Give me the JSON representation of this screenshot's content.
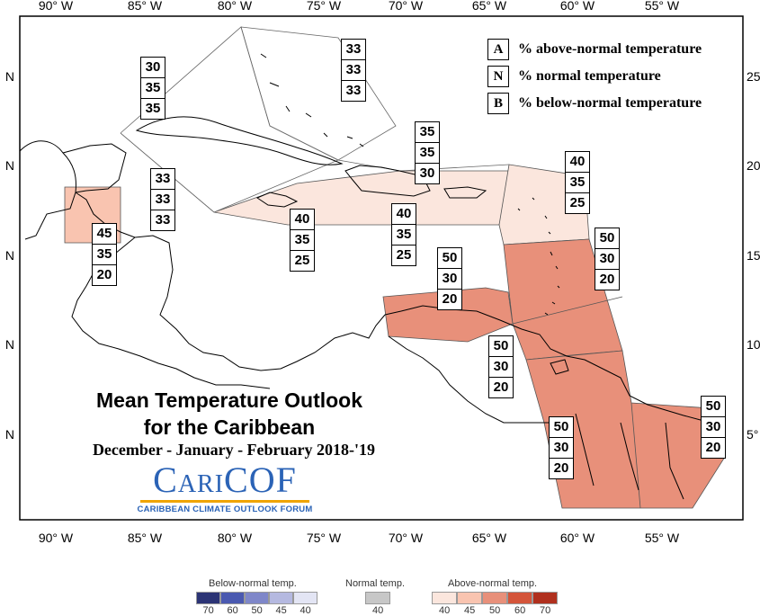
{
  "map": {
    "title_line1": "Mean Temperature Outlook",
    "title_line2": "for the Caribbean",
    "period": "December - January - February 2018-'19",
    "logo_text": "CariCOF",
    "logo_subtitle": "CARIBBEAN CLIMATE OUTLOOK FORUM"
  },
  "lon_ticks": [
    "90° W",
    "85° W",
    "80° W",
    "75° W",
    "70° W",
    "65° W",
    "60° W",
    "55° W"
  ],
  "lat_ticks_left": [
    "N",
    "N",
    "N",
    "N",
    "N"
  ],
  "lat_ticks_right": [
    "25",
    "20",
    "15",
    "10",
    "5°"
  ],
  "legend": {
    "items": [
      {
        "key": "A",
        "text": "% above-normal temperature"
      },
      {
        "key": "N",
        "text": "% normal temperature"
      },
      {
        "key": "B",
        "text": "% below-normal temperature"
      }
    ]
  },
  "regions": [
    {
      "name": "bahamas",
      "probs": [
        "33",
        "33",
        "33"
      ],
      "color": "none"
    },
    {
      "name": "gulf-cuba-west",
      "probs": [
        "30",
        "35",
        "35"
      ],
      "color": "none"
    },
    {
      "name": "western-caribbean",
      "probs": [
        "33",
        "33",
        "33"
      ],
      "color": "none"
    },
    {
      "name": "belize",
      "probs": [
        "45",
        "35",
        "20"
      ],
      "color": "#f9c4b0"
    },
    {
      "name": "jamaica",
      "probs": [
        "40",
        "35",
        "25"
      ],
      "color": "#fbe6dd"
    },
    {
      "name": "hispaniola-pr",
      "probs": [
        "40",
        "35",
        "25"
      ],
      "color": "#fbe6dd"
    },
    {
      "name": "turks-caicos",
      "probs": [
        "35",
        "35",
        "30"
      ],
      "color": "none"
    },
    {
      "name": "leeward-islands",
      "probs": [
        "40",
        "35",
        "25"
      ],
      "color": "#fbe6dd"
    },
    {
      "name": "windward-islands",
      "probs": [
        "50",
        "30",
        "20"
      ],
      "color": "#e8907a"
    },
    {
      "name": "abc-islands",
      "probs": [
        "50",
        "30",
        "20"
      ],
      "color": "#e8907a"
    },
    {
      "name": "trinidad",
      "probs": [
        "50",
        "30",
        "20"
      ],
      "color": "#e8907a"
    },
    {
      "name": "guyana",
      "probs": [
        "50",
        "30",
        "20"
      ],
      "color": "#e8907a"
    },
    {
      "name": "suriname-guiana",
      "probs": [
        "50",
        "30",
        "20"
      ],
      "color": "#e8907a"
    }
  ],
  "scale": {
    "below_title": "Below-normal temp.",
    "normal_title": "Normal temp.",
    "above_title": "Above-normal temp.",
    "below_labels": [
      "70",
      "60",
      "50",
      "45",
      "40"
    ],
    "normal_labels": [
      "40"
    ],
    "above_labels": [
      "40",
      "45",
      "50",
      "60",
      "70"
    ],
    "below_colors": [
      "#2c3475",
      "#4a59b0",
      "#7f87c9",
      "#b5b9e0",
      "#e3e5f4"
    ],
    "normal_color": "#c7c7c7",
    "above_colors": [
      "#fbe6dd",
      "#f9c4b0",
      "#e8907a",
      "#d4553a",
      "#b0301e"
    ]
  }
}
